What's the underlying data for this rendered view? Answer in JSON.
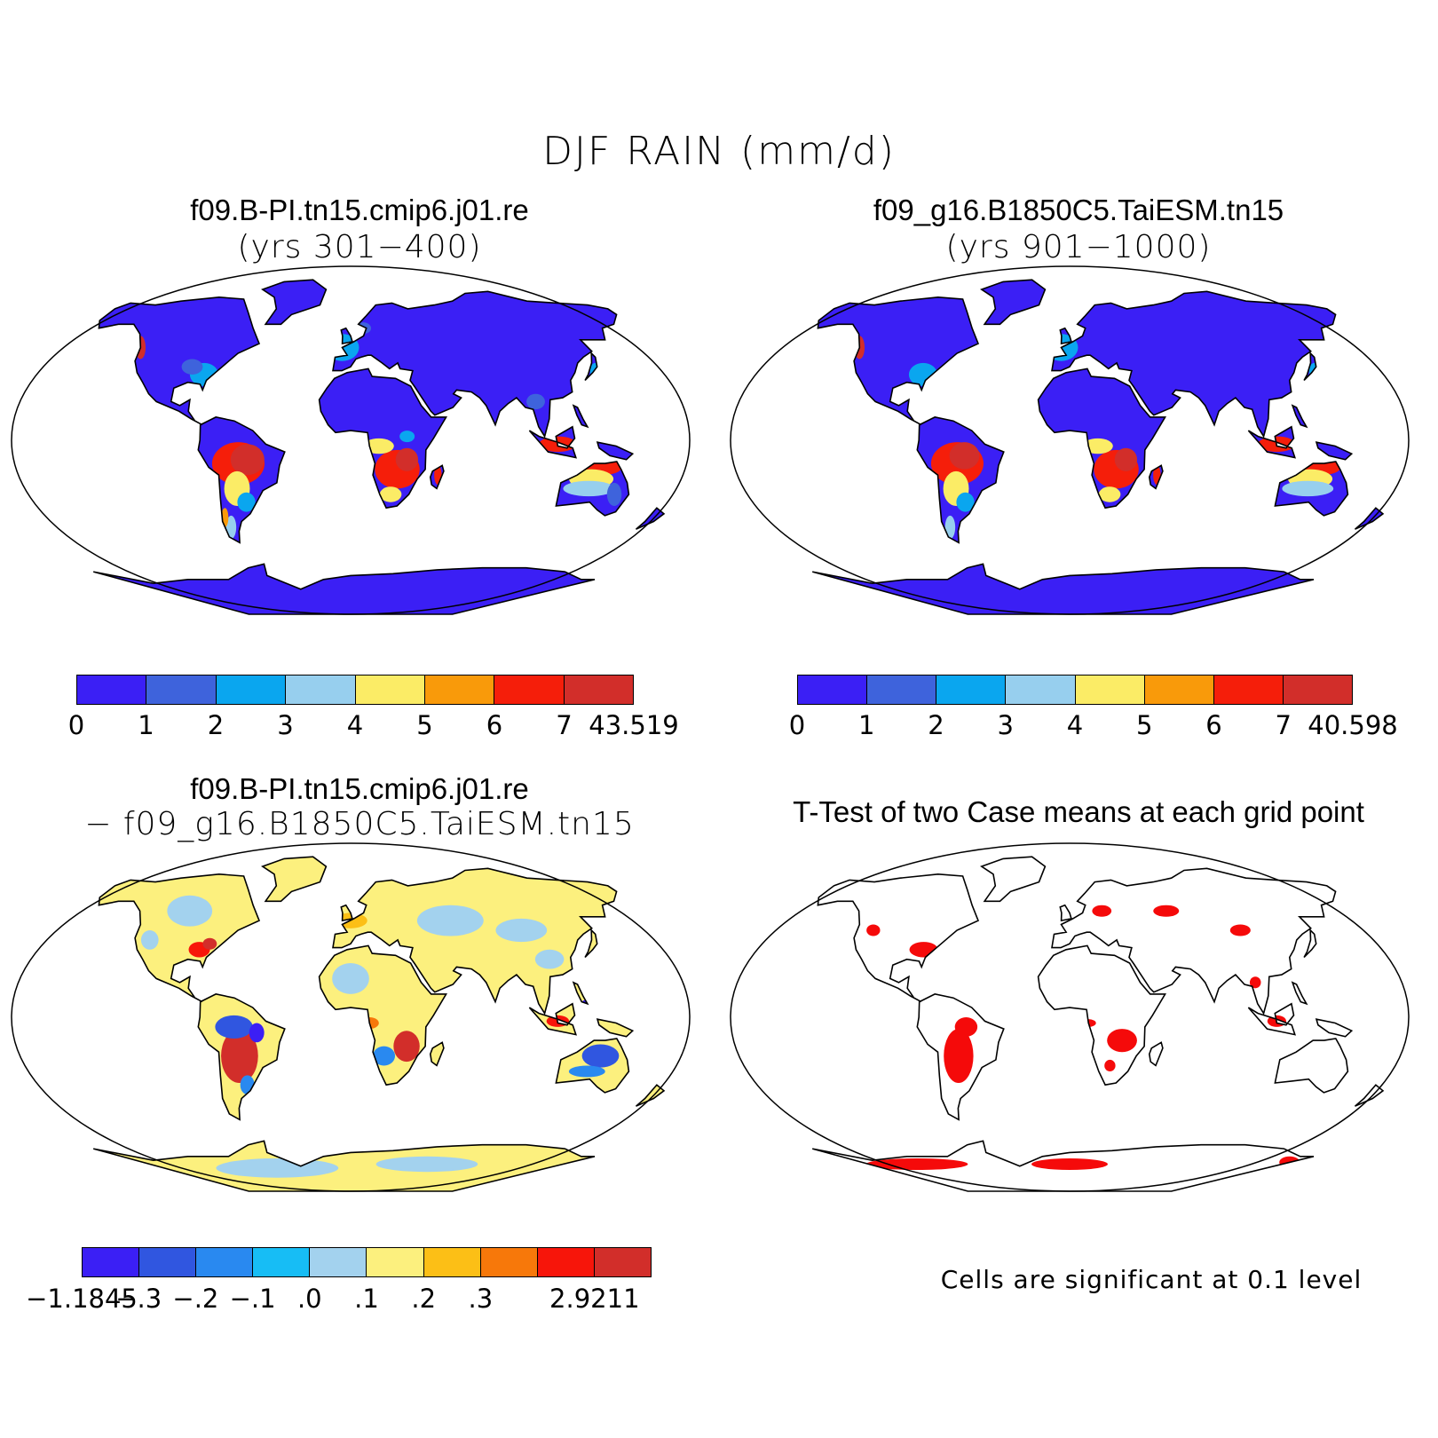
{
  "figure": {
    "title": "DJF RAIN (mm/d)"
  },
  "panels": {
    "case1": {
      "title": "f09.B-PI.tn15.cmip6.j01.re",
      "years": "(yrs 301−400)",
      "colorbar": {
        "colors": [
          "#3b1ff5",
          "#3e63dc",
          "#0aa6ef",
          "#97cfee",
          "#fbec66",
          "#f99a0a",
          "#f51e0a",
          "#d22e2a"
        ],
        "tick_labels": [
          "0",
          "1",
          "2",
          "3",
          "4",
          "5",
          "6",
          "7",
          "43.519"
        ]
      }
    },
    "case2": {
      "title": "f09_g16.B1850C5.TaiESM.tn15",
      "years": "(yrs 901−1000)",
      "colorbar": {
        "colors": [
          "#3b1ff5",
          "#3e63dc",
          "#0aa6ef",
          "#97cfee",
          "#fbec66",
          "#f99a0a",
          "#f51e0a",
          "#d22e2a"
        ],
        "tick_labels": [
          "0",
          "1",
          "2",
          "3",
          "4",
          "5",
          "6",
          "7",
          "40.598"
        ]
      }
    },
    "difference": {
      "title": "f09.B-PI.tn15.cmip6.j01.re",
      "subtitle": "−  f09_g16.B1850C5.TaiESM.tn15",
      "colorbar": {
        "colors": [
          "#3b1ff5",
          "#3056e0",
          "#2989f0",
          "#17bdf5",
          "#a3d2ee",
          "#fcf07e",
          "#fcbf16",
          "#f7780a",
          "#f7150a",
          "#d22e2a"
        ],
        "tick_labels": [
          "−1.1845",
          "−.3",
          "−.2",
          "−.1",
          ".0",
          ".1",
          ".2",
          ".3",
          "",
          "2.9211"
        ]
      }
    },
    "ttest": {
      "title": "T-Test of two Case means at each grid point",
      "note": "Cells are significant at 0.1 level",
      "significant_color": "#f50a0a"
    }
  }
}
